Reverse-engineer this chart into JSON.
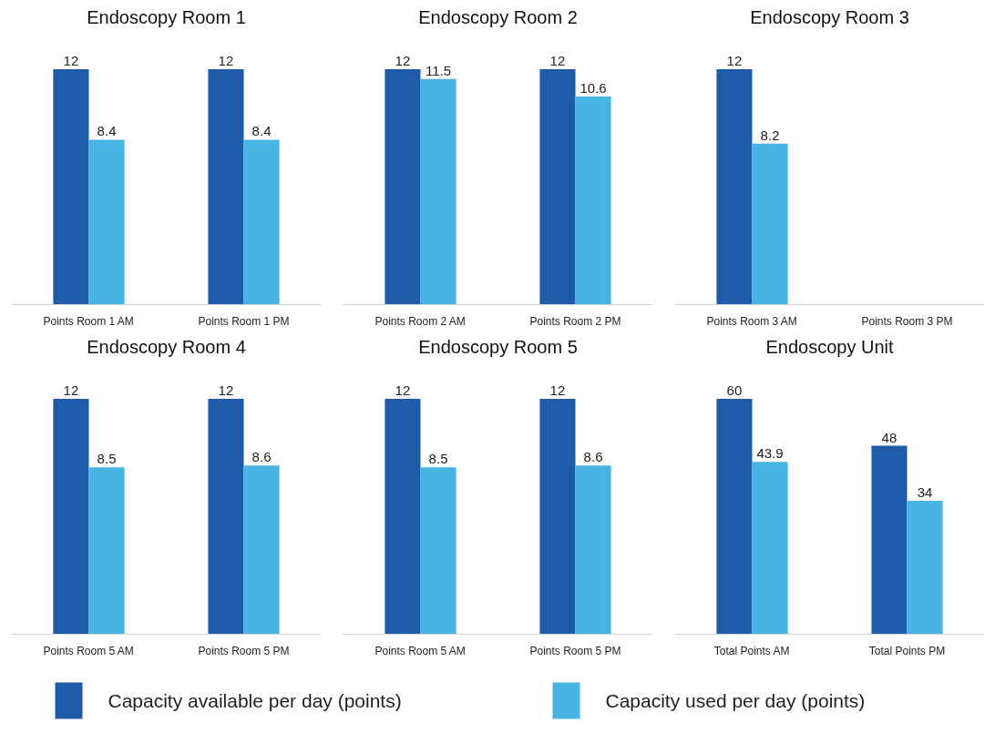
{
  "chart_data": [
    {
      "type": "bar",
      "title": "Endoscopy Room 1",
      "categories": [
        "Points Room 1 AM",
        "Points Room 1 PM"
      ],
      "data_labels": true,
      "legend": "bottom",
      "grid": false,
      "series": [
        {
          "name": "Capacity available per day (points)",
          "color": "#1f5ba8",
          "values": [
            12,
            12
          ]
        },
        {
          "name": "Capacity used per day (points)",
          "color": "#47b4e3",
          "values": [
            8.4,
            8.4
          ]
        }
      ]
    },
    {
      "type": "bar",
      "title": "Endoscopy Room 2",
      "categories": [
        "Points Room 2 AM",
        "Points Room 2 PM"
      ],
      "data_labels": true,
      "grid": false,
      "series": [
        {
          "color": "#1f5ba8",
          "values": [
            12,
            12
          ]
        },
        {
          "color": "#47b4e3",
          "values": [
            11.5,
            10.6
          ]
        }
      ]
    },
    {
      "type": "bar",
      "title": "Endoscopy Room 3",
      "categories": [
        "Points Room 3 AM",
        "Points Room 3 PM"
      ],
      "data_labels": true,
      "grid": false,
      "series": [
        {
          "color": "#1f5ba8",
          "values": [
            12,
            null
          ]
        },
        {
          "color": "#47b4e3",
          "values": [
            8.2,
            null
          ]
        }
      ]
    },
    {
      "type": "bar",
      "title": "Endoscopy Room 4",
      "categories": [
        "Points Room 5 AM",
        "Points Room 5 PM"
      ],
      "data_labels": true,
      "grid": false,
      "series": [
        {
          "color": "#1f5ba8",
          "values": [
            12,
            12
          ]
        },
        {
          "color": "#47b4e3",
          "values": [
            8.5,
            8.6
          ]
        }
      ]
    },
    {
      "type": "bar",
      "title": "Endoscopy Room 5",
      "categories": [
        "Points Room 5 AM",
        "Points Room 5 PM"
      ],
      "data_labels": true,
      "grid": false,
      "series": [
        {
          "color": "#1f5ba8",
          "values": [
            12,
            12
          ]
        },
        {
          "color": "#47b4e3",
          "values": [
            8.5,
            8.6
          ]
        }
      ]
    },
    {
      "type": "bar",
      "title": "Endoscopy Unit",
      "categories": [
        "Total Points AM",
        "Total Points PM"
      ],
      "data_labels": true,
      "grid": false,
      "series": [
        {
          "color": "#1f5ba8",
          "values": [
            60,
            48
          ]
        },
        {
          "color": "#47b4e3",
          "values": [
            43.9,
            34
          ]
        }
      ]
    }
  ]
}
